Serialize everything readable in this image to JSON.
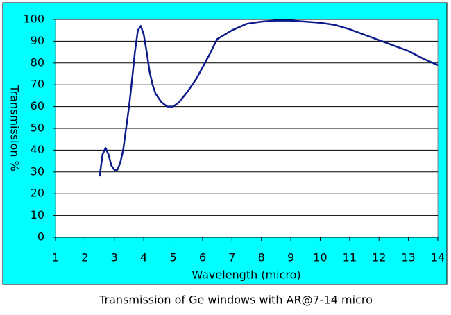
{
  "chart_data": {
    "type": "line",
    "caption": "Transmission of Ge windows with AR@7-14 micro",
    "x_label": "Wavelength (micro)",
    "y_label": "Transmission %",
    "x": [
      2.5,
      2.6,
      2.7,
      2.8,
      2.9,
      3.0,
      3.1,
      3.2,
      3.3,
      3.4,
      3.5,
      3.6,
      3.7,
      3.8,
      3.9,
      4.0,
      4.1,
      4.2,
      4.3,
      4.4,
      4.6,
      4.8,
      5.0,
      5.2,
      5.5,
      5.8,
      6.0,
      6.2,
      6.5,
      7.0,
      7.5,
      8.0,
      8.5,
      9.0,
      9.5,
      10.0,
      10.5,
      11.0,
      11.5,
      12.0,
      12.5,
      13.0,
      13.5,
      14.0
    ],
    "values": [
      28,
      38,
      41,
      38,
      33,
      31,
      31,
      34,
      40,
      50,
      60,
      72,
      85,
      95,
      97,
      93,
      85,
      76,
      70,
      66,
      62,
      60,
      60,
      62,
      67,
      73,
      78,
      83,
      91,
      95,
      98,
      99,
      99.5,
      99.5,
      99,
      98.5,
      97.5,
      95.5,
      93,
      90.5,
      88,
      85.5,
      82,
      79
    ],
    "color": "#0d1a8c",
    "xlim": [
      1,
      14
    ],
    "xticks": [
      1,
      2,
      3,
      4,
      5,
      6,
      7,
      8,
      9,
      10,
      11,
      12,
      13,
      14
    ],
    "ylim": [
      0,
      100
    ],
    "yticks": [
      0,
      10,
      20,
      30,
      40,
      50,
      60,
      70,
      80,
      90,
      100
    ],
    "grid": true
  }
}
